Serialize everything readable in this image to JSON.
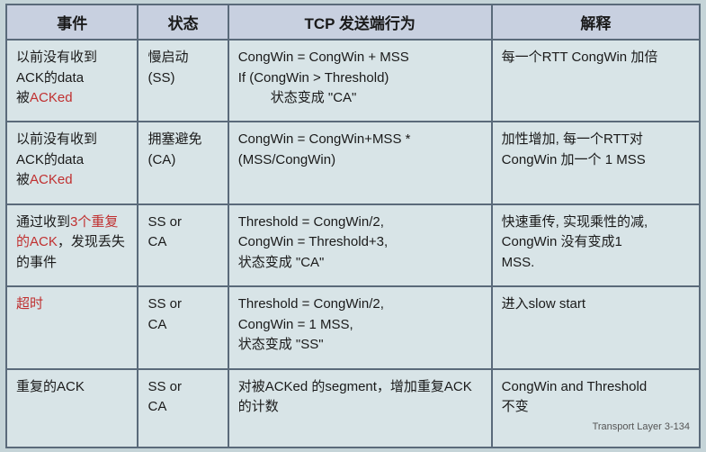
{
  "table": {
    "headers": {
      "col1": "事件",
      "col2": "状态",
      "col3": "TCP 发送端行为",
      "col4": "解释"
    },
    "rows": [
      {
        "event_l1": "以前没有收到",
        "event_l2": "ACK的data",
        "event_l3_pre": "被",
        "event_l3_red": "ACKed",
        "state_l1": "慢启动",
        "state_l2": "(SS)",
        "behavior_l1": "CongWin = CongWin + MSS",
        "behavior_l2": "If (CongWin > Threshold)",
        "behavior_l3": "状态变成 \"CA\"",
        "explain": "每一个RTT CongWin 加倍"
      },
      {
        "event_l1": "以前没有收到",
        "event_l2": "ACK的data",
        "event_l3_pre": "被",
        "event_l3_red": "ACKed",
        "state_l1": "拥塞避免 (CA)",
        "behavior_l1": "CongWin = CongWin+MSS *",
        "behavior_l2": "(MSS/CongWin)",
        "explain_l1": "加性增加, 每一个RTT对",
        "explain_l2": "CongWin 加一个 1 MSS"
      },
      {
        "event_l1": "通过收到",
        "event_l1b": "3个重复的ACK",
        "event_l2": "，发现丢失的事件",
        "state_l1": "SS or",
        "state_l2": "CA",
        "behavior_l1": "Threshold = CongWin/2,",
        "behavior_l2": "CongWin = Threshold+3,",
        "behavior_l3": "状态变成 \"CA\"",
        "explain_l1": "快速重传, 实现乘性的减,",
        "explain_l2": "CongWin 没有变成1",
        "explain_l3": "MSS."
      },
      {
        "event_red": "超时",
        "state_l1": "SS or",
        "state_l2": "CA",
        "behavior_l1": "Threshold = CongWin/2,",
        "behavior_l2": "CongWin = 1 MSS,",
        "behavior_l3": "状态变成 \"SS\"",
        "explain": "进入slow start"
      },
      {
        "event": "重复的ACK",
        "state_l1": "SS or",
        "state_l2": "CA",
        "behavior_l1": "对被ACKed 的segment，增加重复ACK的计数",
        "explain_l1": "CongWin and Threshold",
        "explain_l2": "不变",
        "footer": "Transport Layer 3-134"
      }
    ]
  }
}
